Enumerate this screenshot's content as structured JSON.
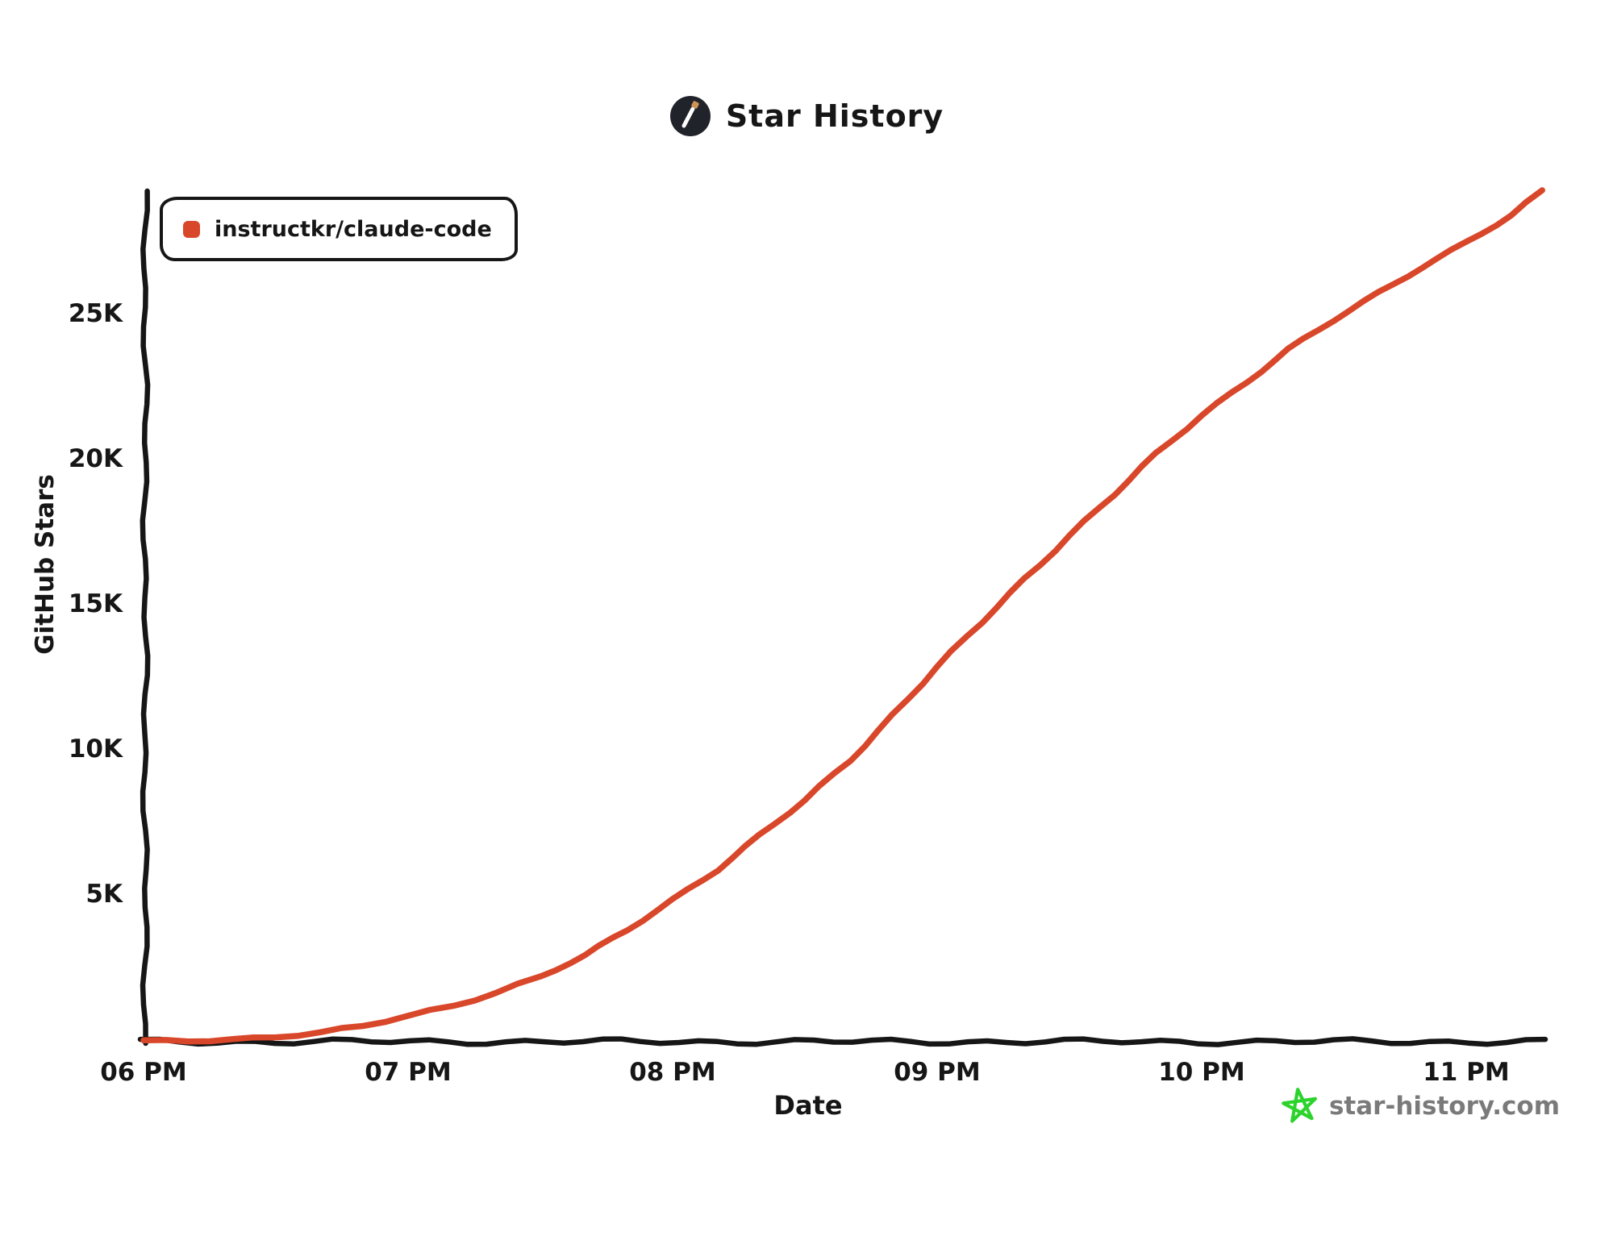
{
  "title": {
    "text": "Star History"
  },
  "legend": {
    "series": [
      {
        "label": "instructkr/claude-code",
        "color": "#d9472b"
      }
    ]
  },
  "footer": {
    "site": "star-history.com",
    "star_icon_color": "#2bd32b",
    "text_color": "#7a7a7a"
  },
  "colors": {
    "axis": "#161616",
    "series_red": "#d9472b",
    "background": "#ffffff"
  },
  "chart_data": {
    "type": "line",
    "title": "Star History",
    "xlabel": "Date",
    "ylabel": "GitHub Stars",
    "x_unit": "time of day (24h decimal hours)",
    "xlim_hours": [
      18.0,
      23.35
    ],
    "ylim": [
      0,
      29500
    ],
    "grid": false,
    "legend_position": "top-left",
    "x_ticks": [
      {
        "h": 18,
        "label": "06 PM"
      },
      {
        "h": 19,
        "label": "07 PM"
      },
      {
        "h": 20,
        "label": "08 PM"
      },
      {
        "h": 21,
        "label": "09 PM"
      },
      {
        "h": 22,
        "label": "10 PM"
      },
      {
        "h": 23,
        "label": "11 PM"
      }
    ],
    "y_ticks": [
      {
        "v": 5000,
        "label": "5K"
      },
      {
        "v": 10000,
        "label": "10K"
      },
      {
        "v": 15000,
        "label": "15K"
      },
      {
        "v": 20000,
        "label": "20K"
      },
      {
        "v": 25000,
        "label": "25K"
      }
    ],
    "series": [
      {
        "name": "instructkr/claude-code",
        "color": "#d9472b",
        "points": [
          {
            "h": 18.0,
            "stars": 0
          },
          {
            "h": 18.17,
            "stars": 30
          },
          {
            "h": 18.33,
            "stars": 90
          },
          {
            "h": 18.5,
            "stars": 180
          },
          {
            "h": 18.67,
            "stars": 310
          },
          {
            "h": 18.83,
            "stars": 520
          },
          {
            "h": 19.0,
            "stars": 880
          },
          {
            "h": 19.17,
            "stars": 1250
          },
          {
            "h": 19.33,
            "stars": 1700
          },
          {
            "h": 19.5,
            "stars": 2250
          },
          {
            "h": 19.67,
            "stars": 2950
          },
          {
            "h": 19.83,
            "stars": 3850
          },
          {
            "h": 20.0,
            "stars": 4900
          },
          {
            "h": 20.17,
            "stars": 5950
          },
          {
            "h": 20.33,
            "stars": 7100
          },
          {
            "h": 20.5,
            "stars": 8300
          },
          {
            "h": 20.67,
            "stars": 9700
          },
          {
            "h": 20.83,
            "stars": 11250
          },
          {
            "h": 21.0,
            "stars": 12900
          },
          {
            "h": 21.17,
            "stars": 14450
          },
          {
            "h": 21.33,
            "stars": 15950
          },
          {
            "h": 21.5,
            "stars": 17450
          },
          {
            "h": 21.67,
            "stars": 18850
          },
          {
            "h": 21.83,
            "stars": 20250
          },
          {
            "h": 22.0,
            "stars": 21600
          },
          {
            "h": 22.17,
            "stars": 22750
          },
          {
            "h": 22.33,
            "stars": 23850
          },
          {
            "h": 22.5,
            "stars": 24850
          },
          {
            "h": 22.67,
            "stars": 25800
          },
          {
            "h": 22.83,
            "stars": 26700
          },
          {
            "h": 23.0,
            "stars": 27550
          },
          {
            "h": 23.17,
            "stars": 28450
          },
          {
            "h": 23.29,
            "stars": 29300
          }
        ]
      }
    ]
  }
}
